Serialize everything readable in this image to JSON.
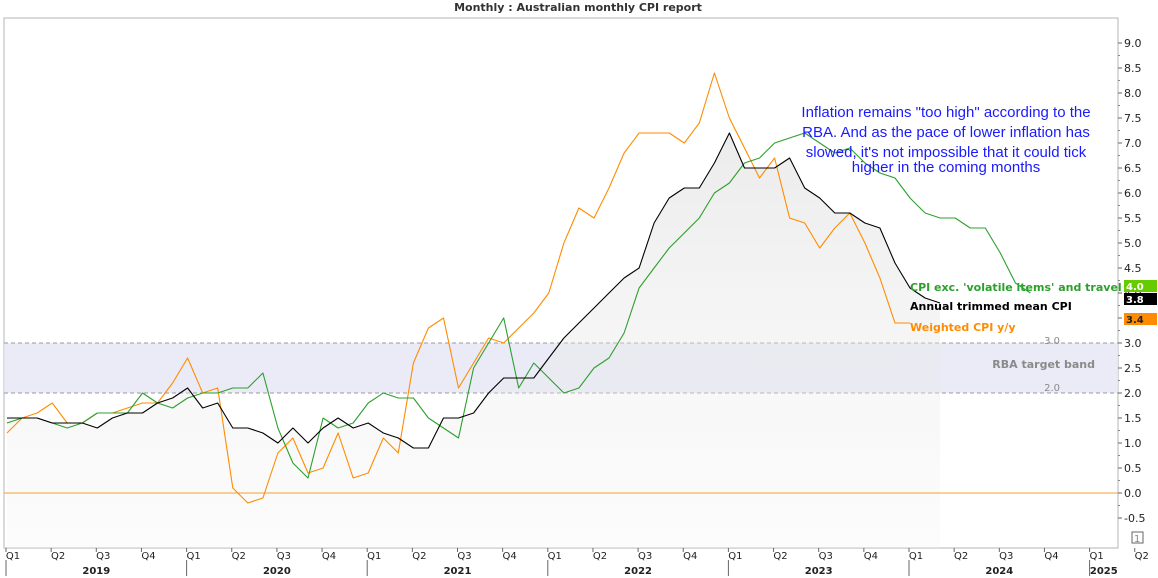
{
  "chart_data": {
    "type": "line",
    "title": "Monthly : Australian monthly CPI report",
    "y_ticks": [
      "-0.5",
      "0.0",
      "0.5",
      "1.0",
      "1.5",
      "2.0",
      "2.5",
      "3.0",
      "3.5",
      "4.0",
      "4.5",
      "5.0",
      "5.5",
      "6.0",
      "6.5",
      "7.0",
      "7.5",
      "8.0",
      "8.5",
      "9.0"
    ],
    "ylim": [
      -1.1,
      9.5
    ],
    "x_quarter_labels": [
      "Q1",
      "Q2",
      "Q3",
      "Q4",
      "Q1",
      "Q2",
      "Q3",
      "Q4",
      "Q1",
      "Q2",
      "Q3",
      "Q4",
      "Q1",
      "Q2",
      "Q3",
      "Q4",
      "Q1",
      "Q2",
      "Q3",
      "Q4",
      "Q1",
      "Q2",
      "Q3",
      "Q4",
      "Q1",
      "Q2"
    ],
    "x_year_labels": [
      "2019",
      "2020",
      "2021",
      "2022",
      "2023",
      "2024",
      "2025"
    ],
    "annotation": [
      "Inflation remains \"too high\" according to the",
      "RBA. And as the pace of lower inflation has",
      "slowed, it's not impossible that it could tick",
      "higher in the coming months"
    ],
    "target_band": {
      "label": "RBA target band",
      "low": 2.0,
      "high": 3.0,
      "low_label": "2.0",
      "high_label": "3.0"
    },
    "zero_line": 0.0,
    "grid": false,
    "x_start": "2019-01",
    "series": [
      {
        "name": "CPI exc. 'volatile items' and travel",
        "color": "#2ca02c",
        "last_value": "4.0",
        "values": [
          1.4,
          1.5,
          1.5,
          1.4,
          1.3,
          1.4,
          1.6,
          1.6,
          1.6,
          2.0,
          1.8,
          1.7,
          1.9,
          2.0,
          2.0,
          2.1,
          2.1,
          2.4,
          1.3,
          0.6,
          0.3,
          1.5,
          1.3,
          1.4,
          1.8,
          2.0,
          1.9,
          1.9,
          1.5,
          1.3,
          1.1,
          2.5,
          3.0,
          3.5,
          2.1,
          2.6,
          2.3,
          2.0,
          2.1,
          2.5,
          2.7,
          3.2,
          4.1,
          4.5,
          4.9,
          5.2,
          5.5,
          6.0,
          6.2,
          6.6,
          6.7,
          7.0,
          7.1,
          7.2,
          7.0,
          6.8,
          6.9,
          6.6,
          6.4,
          6.3,
          5.9,
          5.6,
          5.5,
          5.5,
          5.3,
          5.3,
          4.8,
          4.2,
          4.0
        ]
      },
      {
        "name": "Annual trimmed mean CPI",
        "color": "#000000",
        "last_value": "3.8",
        "values": [
          1.5,
          1.5,
          1.5,
          1.4,
          1.4,
          1.4,
          1.3,
          1.5,
          1.6,
          1.6,
          1.8,
          1.9,
          2.1,
          1.7,
          1.8,
          1.3,
          1.3,
          1.2,
          1.0,
          1.3,
          1.0,
          1.3,
          1.5,
          1.3,
          1.4,
          1.2,
          1.1,
          0.9,
          0.9,
          1.5,
          1.5,
          1.6,
          2.0,
          2.3,
          2.3,
          2.3,
          2.7,
          3.1,
          3.4,
          3.7,
          4.0,
          4.3,
          4.5,
          5.4,
          5.9,
          6.1,
          6.1,
          6.6,
          7.2,
          6.5,
          6.5,
          6.5,
          6.7,
          6.1,
          5.9,
          5.6,
          5.6,
          5.4,
          5.3,
          4.6,
          4.1,
          3.9,
          3.8
        ]
      },
      {
        "name": "Weighted CPI y/y",
        "color": "#ff8c00",
        "last_value": "3.4",
        "values": [
          1.2,
          1.5,
          1.6,
          1.8,
          1.4,
          1.4,
          1.6,
          1.6,
          1.7,
          1.8,
          1.8,
          2.2,
          2.7,
          2.0,
          2.1,
          0.1,
          -0.2,
          -0.1,
          0.8,
          1.1,
          0.4,
          0.5,
          1.2,
          0.3,
          0.4,
          1.1,
          0.8,
          2.6,
          3.3,
          3.5,
          2.1,
          2.6,
          3.1,
          3.0,
          3.3,
          3.6,
          4.0,
          5.0,
          5.7,
          5.5,
          6.1,
          6.8,
          7.2,
          7.2,
          7.2,
          7.0,
          7.4,
          8.4,
          7.5,
          6.9,
          6.3,
          6.7,
          5.5,
          5.4,
          4.9,
          5.3,
          5.6,
          5.0,
          4.3,
          3.4,
          3.4
        ]
      }
    ]
  }
}
